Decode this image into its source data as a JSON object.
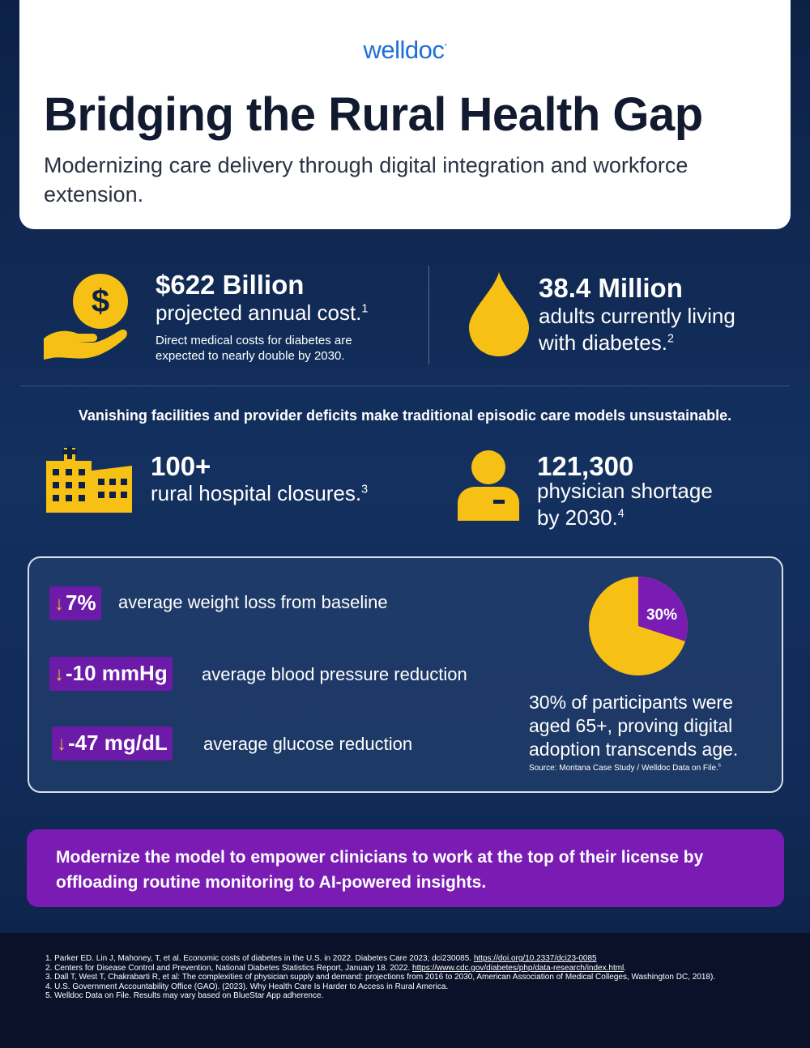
{
  "header": {
    "logo": "welldoc",
    "logo_mark": "°",
    "title": "Bridging the Rural Health Gap",
    "subtitle": "Modernizing care delivery through digital integration and workforce extension."
  },
  "stats_top": [
    {
      "icon": "dollar-hand-icon",
      "big": "$622 Billion",
      "mid": "projected annual cost.",
      "sup": "1",
      "small_1": "Direct medical costs for diabetes are",
      "small_2": "expected to nearly double by 2030."
    },
    {
      "icon": "drop-icon",
      "big": "38.4 Million",
      "mid_1": "adults currently living",
      "mid_2": "with diabetes.",
      "sup": "2"
    }
  ],
  "headline": "Vanishing facilities and provider deficits make traditional episodic care models unsustainable.",
  "stats_mid": [
    {
      "icon": "hospital-icon",
      "big": "100+",
      "mid": "rural hospital closures.",
      "sup": "3"
    },
    {
      "icon": "physician-icon",
      "big": "121,300",
      "mid_1": "physician shortage",
      "mid_2": "by 2030.",
      "sup": "4"
    }
  ],
  "results": {
    "arrow": "↓",
    "metrics": [
      {
        "value": "7%",
        "label": "average weight loss from baseline"
      },
      {
        "value": "-10 mmHg",
        "label": "average blood pressure reduction"
      },
      {
        "value": "-47 mg/dL",
        "label": "average glucose reduction"
      }
    ],
    "pie": {
      "label": "30%",
      "fraction": 0.3,
      "colors": {
        "highlight": "#7a1cb4",
        "rest": "#f6c014"
      }
    },
    "caption": "30% of participants were aged 65+, proving digital adoption transcends age.",
    "source": "Source: Montana Case Study / Welldoc Data on File.",
    "source_sup": "5"
  },
  "cta": "Modernize the model to empower clinicians to work at the top of their license by offloading routine monitoring to AI-powered insights.",
  "footnotes": [
    {
      "text": "1. Parker ED. Lin J, Mahoney, T, et al. Economic costs of diabetes in the U.S. in 2022. Diabetes Care 2023; dci230085. ",
      "link": "https://doi.org/10.2337/dci23-0085"
    },
    {
      "text": "2. Centers for Disease Control and Prevention, National Diabetes Statistics Report, January 18. 2022. ",
      "link": "https://www.cdc.gov/diabetes/php/data-research/index.html",
      "after": "."
    },
    {
      "text": "3. Dall T, West T, Chakrabarti R, et al: The complexities of physician supply and demand: projections from 2016 to 2030, American Association of Medical Colleges, Washington DC, 2018)."
    },
    {
      "text": "4. U.S. Government Accountability Office (GAO). (2023). Why Health Care Is Harder to Access in Rural America."
    },
    {
      "text": "5. Welldoc Data on File. Results may vary based on BlueStar App adherence."
    }
  ],
  "colors": {
    "accent_yellow": "#f6c014",
    "accent_purple": "#7a1cb4",
    "brand_blue": "#1f6fd6",
    "navy": "#0d2146"
  }
}
